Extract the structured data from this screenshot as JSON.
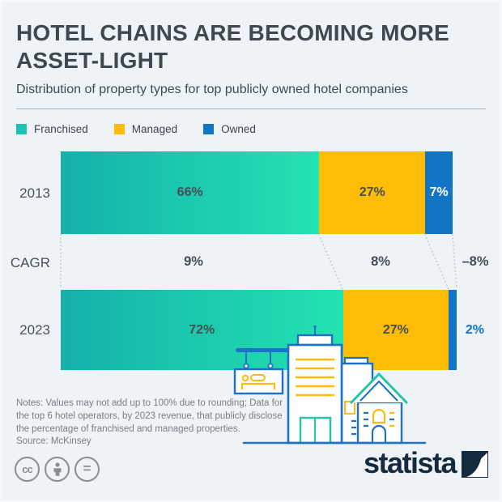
{
  "header": {
    "title": "HOTEL CHAINS ARE BECOMING MORE ASSET-LIGHT",
    "subtitle": "Distribution of property types for top publicly owned hotel companies"
  },
  "legend": {
    "items": [
      {
        "label": "Franchised",
        "color": "#1cc2b2"
      },
      {
        "label": "Managed",
        "color": "#fdbc05"
      },
      {
        "label": "Owned",
        "color": "#1274c5"
      }
    ]
  },
  "chart_data": {
    "type": "bar",
    "subtype": "horizontal-stacked",
    "unit": "%",
    "categories": [
      "2013",
      "2023"
    ],
    "series": [
      {
        "name": "Franchised",
        "values": [
          66,
          72
        ],
        "color_start": "#15b0ab",
        "color_end": "#23e3b1"
      },
      {
        "name": "Managed",
        "values": [
          27,
          27
        ],
        "color": "#fdbc05"
      },
      {
        "name": "Owned",
        "values": [
          7,
          2
        ],
        "color": "#1274c5"
      }
    ],
    "rows": [
      {
        "year": "2013",
        "labels": [
          "66%",
          "27%",
          "7%"
        ]
      },
      {
        "year": "2023",
        "labels": [
          "72%",
          "27%",
          "2%"
        ]
      }
    ],
    "cagr_row": {
      "label": "CAGR",
      "values": [
        "9%",
        "8%",
        "–8%"
      ]
    },
    "xlim": [
      0,
      100
    ],
    "grid": false,
    "legend_position": "top"
  },
  "notes": "Notes: Values may not add up to 100% due to rounding; Data for the top 6 hotel operators, by 2023 revenue, that publicly disclose the percentage of franchised and managed properties.",
  "source": "Source: McKinsey",
  "footer": {
    "license_icons": [
      "cc-icon",
      "attribution-person-icon",
      "no-derivatives-icon"
    ],
    "brand": "statista"
  },
  "colors": {
    "background": "#eef3f8",
    "title_text": "#40474d",
    "label_text": "#474e54",
    "connector_dots": "#b9c0c8",
    "brand_navy": "#15293f",
    "illustration_blue": "#1d71c8",
    "illustration_teal": "#24c4a8",
    "illustration_orange": "#fdbb0a"
  }
}
